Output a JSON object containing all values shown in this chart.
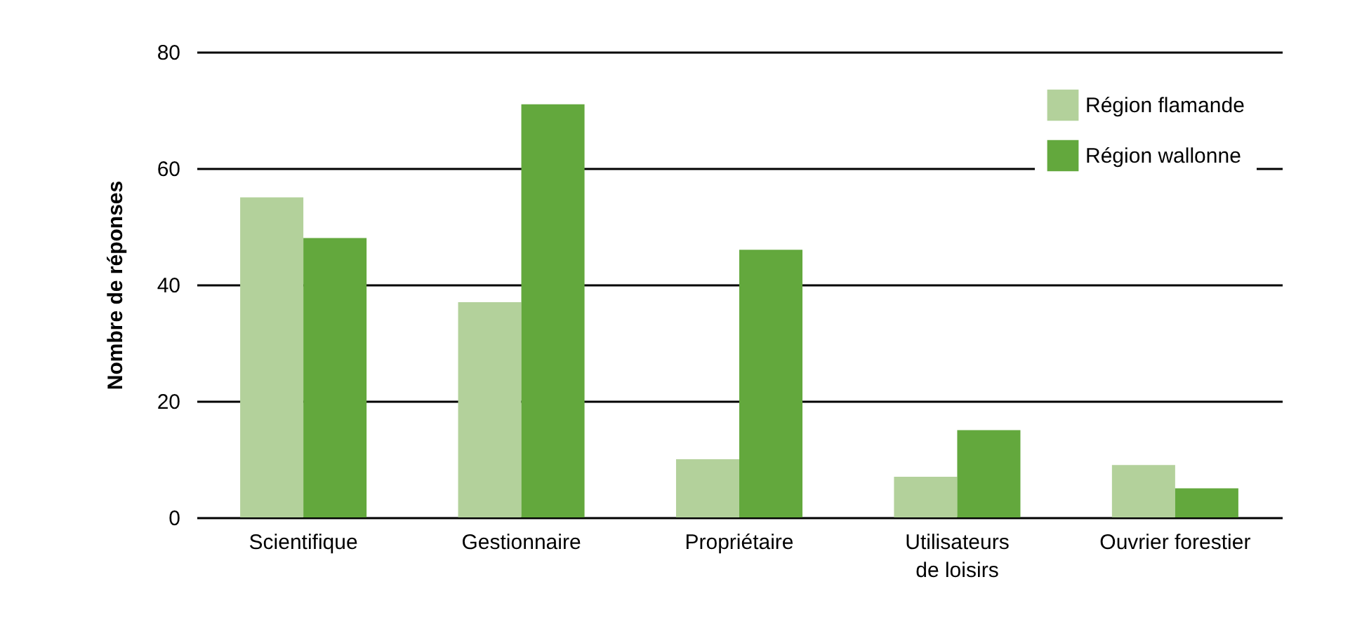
{
  "chart_data": {
    "type": "bar",
    "ylabel": "Nombre de réponses",
    "categories": [
      "Scientifique",
      "Gestionnaire",
      "Propriétaire",
      "Utilisateurs de loisirs",
      "Ouvrier forestier"
    ],
    "series": [
      {
        "name": "Région flamande",
        "color": "#b3d19b",
        "values": [
          55,
          37,
          10,
          7,
          9
        ]
      },
      {
        "name": "Région wallonne",
        "color": "#63a83d",
        "values": [
          48,
          71,
          46,
          15,
          5
        ]
      }
    ],
    "ylim": [
      0,
      80
    ],
    "yticks": [
      0,
      20,
      40,
      60,
      80
    ],
    "grid": "y",
    "legend": "top right"
  }
}
